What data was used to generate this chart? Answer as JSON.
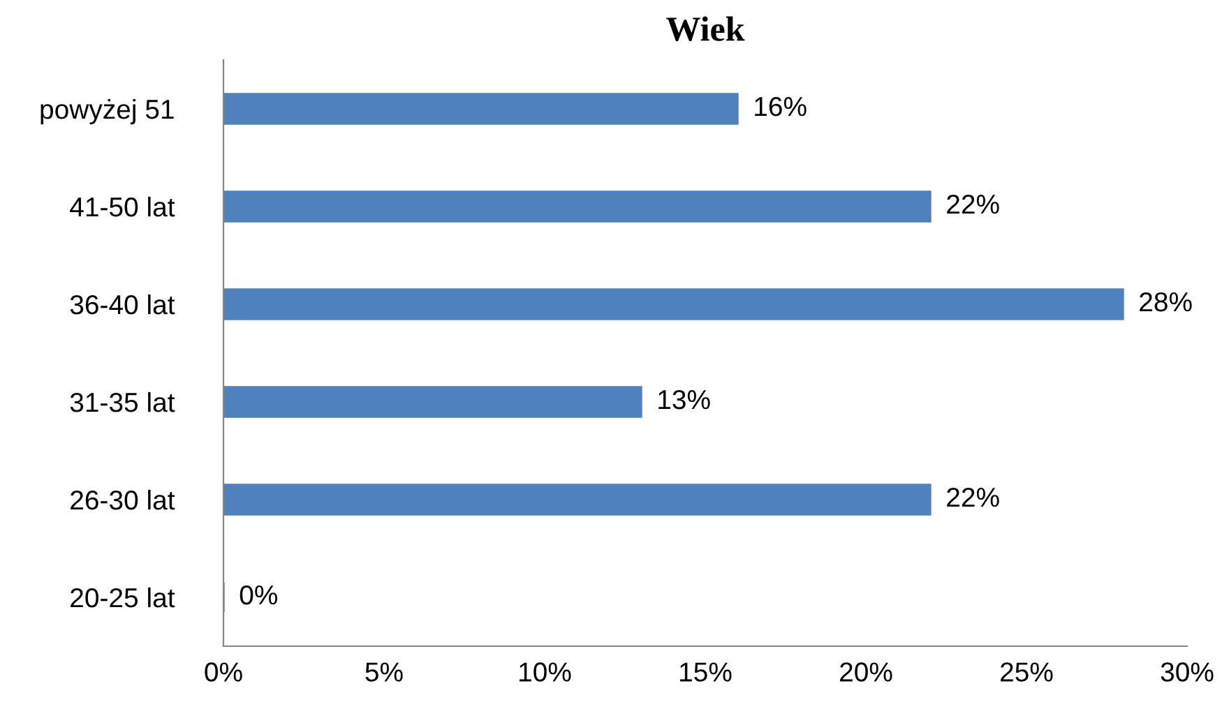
{
  "chart_data": {
    "type": "bar",
    "orientation": "horizontal",
    "title": "Wiek",
    "categories": [
      "powyżej 51",
      "41-50 lat",
      "36-40 lat",
      "31-35 lat",
      "26-30 lat",
      "20-25 lat"
    ],
    "values": [
      16,
      22,
      28,
      13,
      22,
      0
    ],
    "value_labels": [
      "16%",
      "22%",
      "28%",
      "13%",
      "22%",
      "0%"
    ],
    "color": "#4f81bd",
    "xlim": [
      0,
      30
    ],
    "xticks": [
      {
        "value": 0,
        "label": "0%"
      },
      {
        "value": 5,
        "label": "5%"
      },
      {
        "value": 10,
        "label": "10%"
      },
      {
        "value": 15,
        "label": "15%"
      },
      {
        "value": 20,
        "label": "20%"
      },
      {
        "value": 25,
        "label": "25%"
      },
      {
        "value": 30,
        "label": "30%"
      }
    ],
    "grid": false,
    "legend": false
  }
}
